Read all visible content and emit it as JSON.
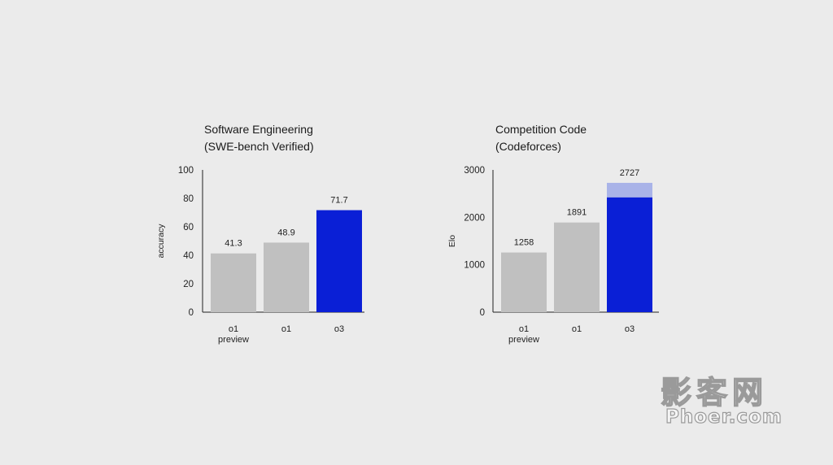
{
  "chart_data": [
    {
      "type": "bar",
      "title_lines": [
        "Software Engineering",
        "(SWE-bench Verified)"
      ],
      "ylabel": "accuracy",
      "ylim": [
        0,
        100
      ],
      "yticks": [
        "0",
        "20",
        "40",
        "60",
        "80",
        "100"
      ],
      "categories": [
        [
          "o1",
          "preview"
        ],
        [
          "o1"
        ],
        [
          "o3"
        ]
      ],
      "values": [
        41.3,
        48.9,
        71.7
      ],
      "value_labels": [
        "41.3",
        "48.9",
        "71.7"
      ],
      "colors": [
        "#c0c0c0",
        "#c0c0c0",
        "#0a1fd6"
      ]
    },
    {
      "type": "bar",
      "title_lines": [
        "Competition Code",
        "(Codeforces)"
      ],
      "ylabel": "Elo",
      "ylim": [
        0,
        3000
      ],
      "yticks": [
        "0",
        "1000",
        "2000",
        "3000"
      ],
      "categories": [
        [
          "o1",
          "preview"
        ],
        [
          "o1"
        ],
        [
          "o3"
        ]
      ],
      "values": [
        1258,
        1891,
        2727
      ],
      "value_labels": [
        "1258",
        "1891",
        "2727"
      ],
      "colors": [
        "#c0c0c0",
        "#c0c0c0",
        "#0a1fd6"
      ],
      "stacked_highlight": {
        "index": 2,
        "solid_value": 2420,
        "light_color": "#a9b3e8"
      }
    }
  ],
  "watermark": {
    "cn": "影客网",
    "en": "Phoer.com"
  }
}
